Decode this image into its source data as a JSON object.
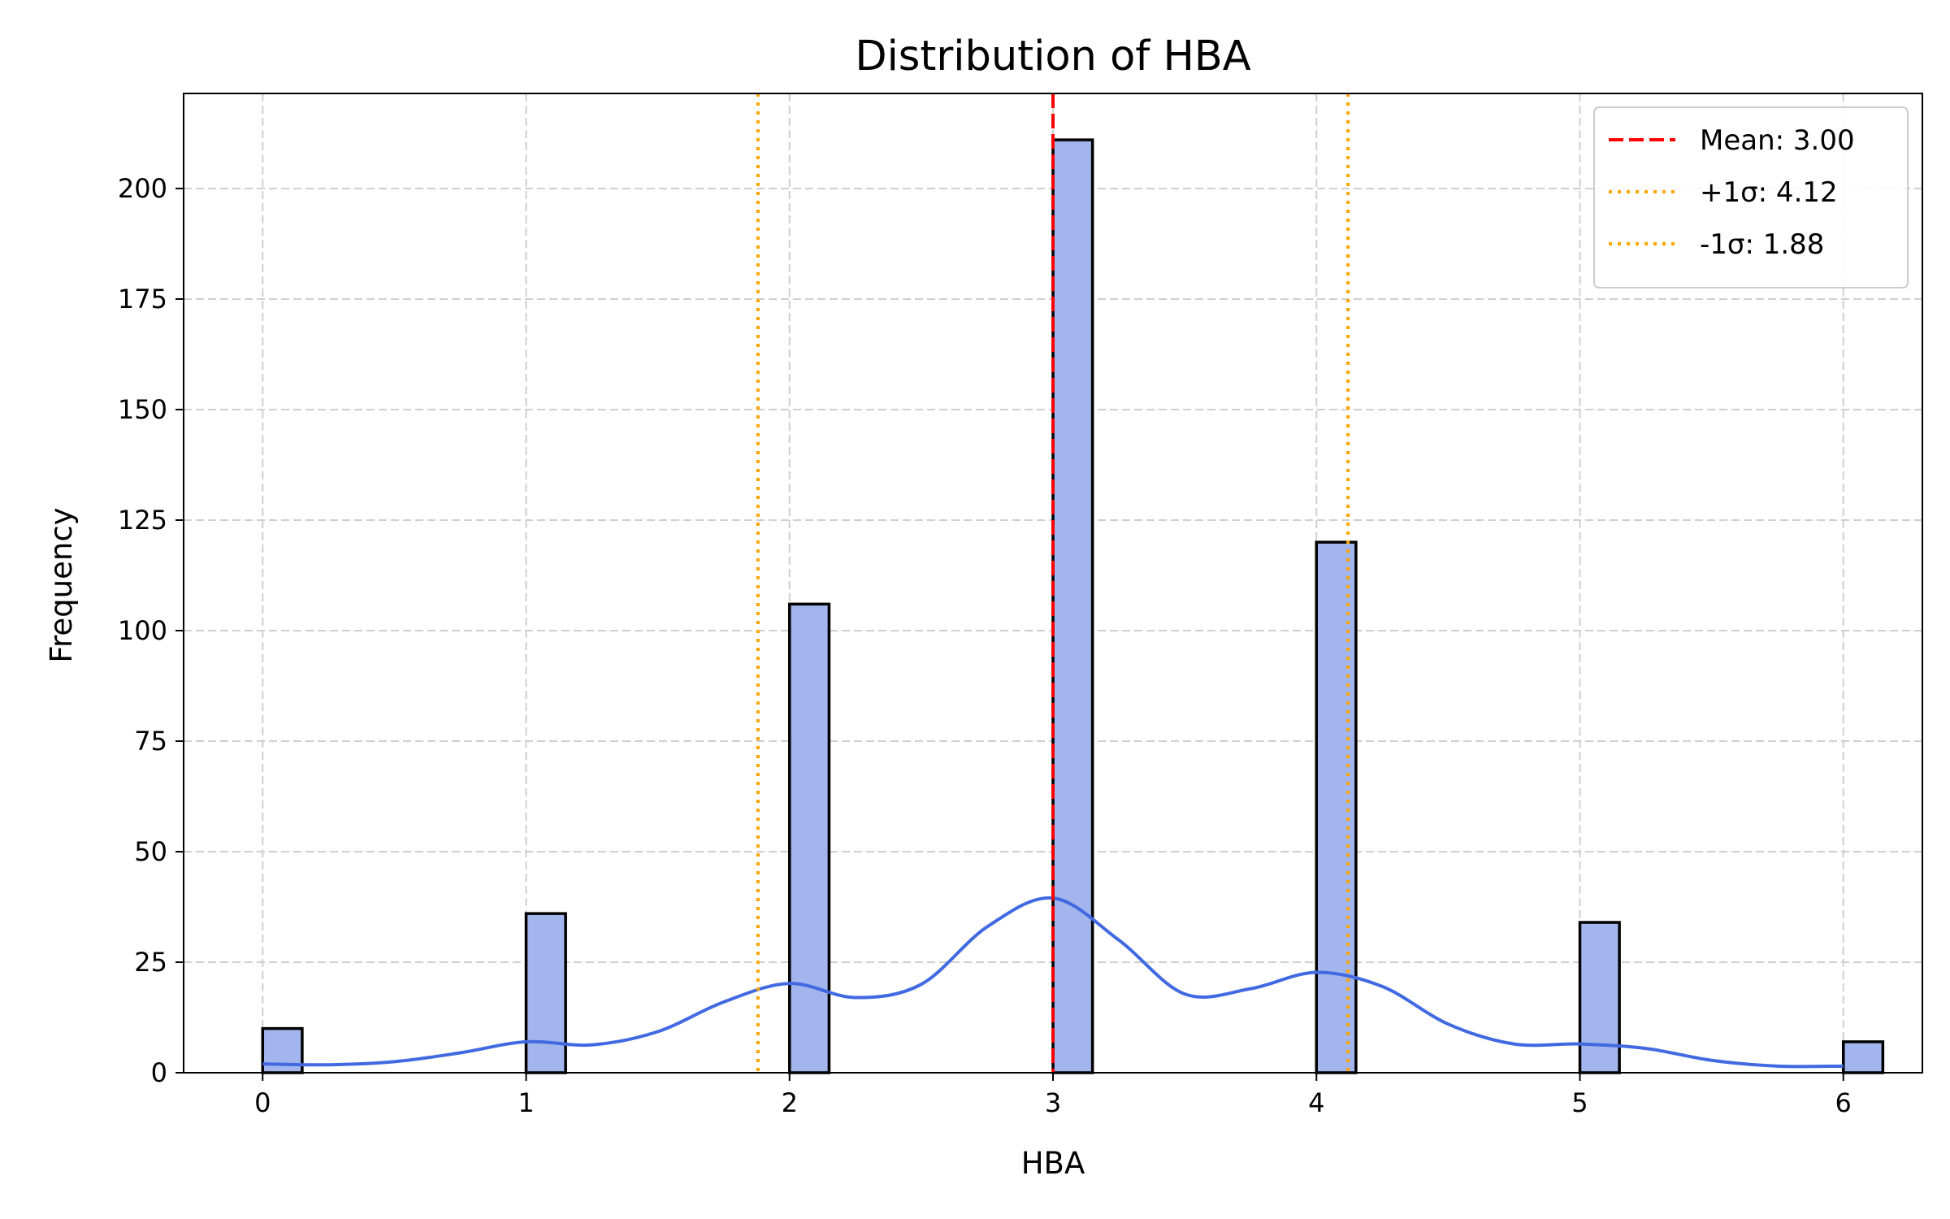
{
  "chart_data": {
    "type": "bar",
    "title": "Distribution of HBA",
    "xlabel": "HBA",
    "ylabel": "Frequency",
    "xlim": [
      -0.3,
      6.3
    ],
    "ylim": [
      0,
      221.5
    ],
    "xticks": [
      0,
      1,
      2,
      3,
      4,
      5,
      6
    ],
    "yticks": [
      0,
      25,
      50,
      75,
      100,
      125,
      150,
      175,
      200
    ],
    "grid": true,
    "bar_color": "#a2b5ec",
    "bars": [
      {
        "x": 0,
        "value": 10
      },
      {
        "x": 1,
        "value": 36
      },
      {
        "x": 2,
        "value": 106
      },
      {
        "x": 3,
        "value": 211
      },
      {
        "x": 4,
        "value": 120
      },
      {
        "x": 5,
        "value": 34
      },
      {
        "x": 6,
        "value": 7
      }
    ],
    "kde": {
      "color": "#4169e1",
      "x": [
        0,
        0.25,
        0.5,
        0.75,
        1,
        1.25,
        1.5,
        1.75,
        2,
        2.25,
        2.5,
        2.75,
        3,
        3.25,
        3.5,
        3.75,
        4,
        4.25,
        4.5,
        4.75,
        5,
        5.25,
        5.5,
        5.75,
        6
      ],
      "y": [
        2,
        1.8,
        2.5,
        4.5,
        7,
        6.3,
        9.3,
        16,
        20.2,
        17,
        20,
        33,
        39.5,
        30,
        17.8,
        19,
        22.7,
        19.5,
        11,
        6.5,
        6.5,
        5.5,
        2.8,
        1.5,
        1.5
      ]
    },
    "reference_lines": [
      {
        "label": "Mean: 3.00",
        "x": 3.0,
        "color": "#ff0000",
        "style": "dashed"
      },
      {
        "label": "+1σ: 4.12",
        "x": 4.12,
        "color": "#ffa500",
        "style": "dotted"
      },
      {
        "label": "-1σ: 1.88",
        "x": 1.88,
        "color": "#ffa500",
        "style": "dotted"
      }
    ],
    "legend_position": "top-right"
  }
}
